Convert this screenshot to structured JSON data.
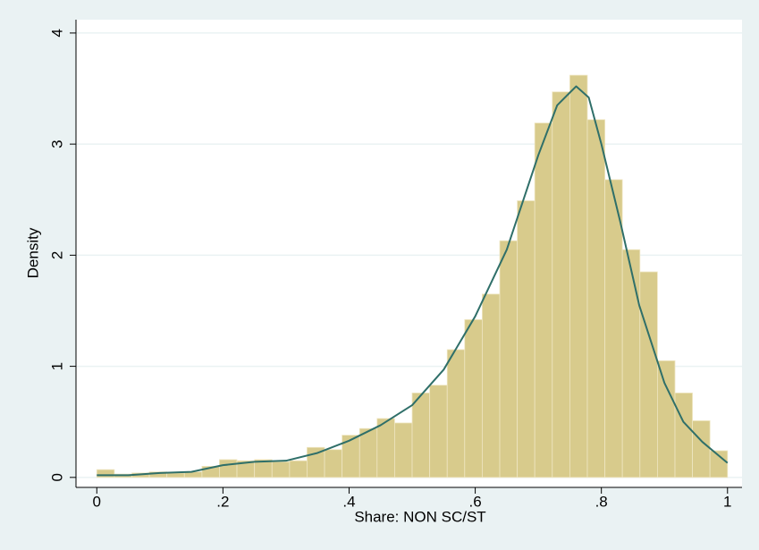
{
  "chart_data": {
    "type": "histogram",
    "x_label": "Share: NON SC/ST",
    "y_label": "Density",
    "bins": [
      0,
      0.0278,
      0.0556,
      0.0833,
      0.1111,
      0.1389,
      0.1667,
      0.1944,
      0.2222,
      0.25,
      0.2778,
      0.3056,
      0.3333,
      0.3611,
      0.3889,
      0.4167,
      0.4444,
      0.4722,
      0.5,
      0.5278,
      0.5556,
      0.5833,
      0.6111,
      0.6389,
      0.6667,
      0.6944,
      0.7222,
      0.75,
      0.7778,
      0.8056,
      0.8333,
      0.8611,
      0.8889,
      0.9167,
      0.9444,
      0.9722,
      1
    ],
    "values": [
      0.07,
      0.03,
      0.04,
      0.05,
      0.04,
      0.05,
      0.1,
      0.16,
      0.15,
      0.16,
      0.14,
      0.15,
      0.27,
      0.25,
      0.38,
      0.44,
      0.53,
      0.49,
      0.76,
      0.83,
      1.15,
      1.42,
      1.65,
      2.13,
      2.49,
      3.19,
      3.47,
      3.62,
      3.22,
      2.68,
      2.05,
      1.85,
      1.05,
      0.76,
      0.51,
      0.24
    ],
    "color": "#d8cb8c",
    "density": {
      "color": "#2f6f69",
      "x": [
        0,
        0.05,
        0.1,
        0.15,
        0.2,
        0.25,
        0.3,
        0.35,
        0.4,
        0.45,
        0.5,
        0.55,
        0.6,
        0.65,
        0.7,
        0.73,
        0.76,
        0.78,
        0.8,
        0.83,
        0.86,
        0.9,
        0.93,
        0.96,
        1
      ],
      "values": [
        0.02,
        0.02,
        0.04,
        0.05,
        0.11,
        0.14,
        0.15,
        0.22,
        0.33,
        0.47,
        0.65,
        0.97,
        1.45,
        2.05,
        2.9,
        3.35,
        3.52,
        3.42,
        3.0,
        2.3,
        1.55,
        0.85,
        0.5,
        0.32,
        0.13
      ]
    },
    "xlim": [
      -0.033,
      1.023
    ],
    "ylim": [
      -0.09,
      4.12
    ],
    "xticks": [
      0,
      {
        "value": 0.2,
        "label": ".2"
      },
      {
        "value": 0.4,
        "label": ".4"
      },
      {
        "value": 0.6,
        "label": ".6"
      },
      {
        "value": 0.8,
        "label": ".8"
      },
      1
    ],
    "yticks": [
      0,
      1,
      2,
      3,
      4
    ],
    "grid": true
  }
}
